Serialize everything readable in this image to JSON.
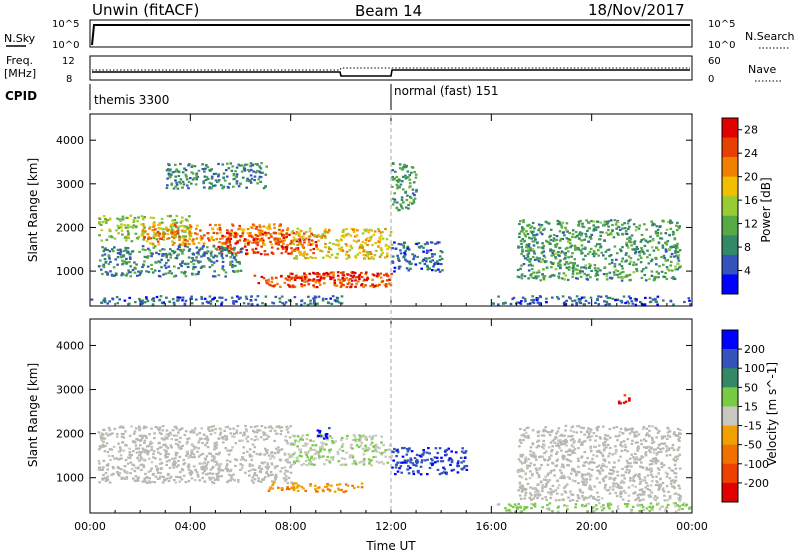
{
  "header": {
    "site": "Unwin (fitACF)",
    "beam": "Beam 14",
    "date": "18/Nov/2017"
  },
  "status_panels": {
    "nsky_label": "N.Sky",
    "nsky_ticks": [
      "10^5",
      "10^0"
    ],
    "nsearch_label": "N.Search",
    "nsearch_ticks": [
      "10^5",
      "10^0"
    ],
    "freq_label_line1": "Freq.",
    "freq_label_line2": "[MHz]",
    "freq_ticks": [
      "12",
      "8"
    ],
    "nave_label": "Nave",
    "nave_ticks": [
      "60",
      "0"
    ],
    "cpid_label": "CPID",
    "cpid_modes": [
      "themis 3300",
      "normal (fast) 151"
    ]
  },
  "colors": {
    "power_scale": [
      "#0000ff",
      "#3355bb",
      "#338866",
      "#55aa44",
      "#99cc33",
      "#f0c000",
      "#f08000",
      "#e84000",
      "#e00000"
    ],
    "velocity_scale": [
      "#0000ff",
      "#3355bb",
      "#338866",
      "#77cc44",
      "#c8c8c0",
      "#f0a000",
      "#f07000",
      "#f04000",
      "#e00000"
    ],
    "ground_scatter": "#b8b8b0"
  },
  "chart_data": [
    {
      "type": "heatmap",
      "panel": "power",
      "ylabel": "Slant Range [km]",
      "yticks": [
        1000,
        2000,
        3000,
        4000
      ],
      "ylim": [
        200,
        4600
      ],
      "xticks": [
        "00:00",
        "04:00",
        "08:00",
        "12:00",
        "16:00",
        "20:00",
        "00:00"
      ],
      "xlim_hours": [
        0,
        24
      ],
      "colorbar": {
        "label": "Power [dB]",
        "ticks": [
          4,
          8,
          12,
          16,
          20,
          24,
          28
        ],
        "range": [
          0,
          30
        ]
      },
      "regions": [
        {
          "t": [
            0.3,
            4
          ],
          "r": [
            1700,
            2300
          ],
          "level": 14
        },
        {
          "t": [
            2,
            8
          ],
          "r": [
            1600,
            2100
          ],
          "level": 22
        },
        {
          "t": [
            5,
            9
          ],
          "r": [
            1400,
            1900
          ],
          "level": 26
        },
        {
          "t": [
            8,
            12
          ],
          "r": [
            1300,
            2000
          ],
          "level": 18
        },
        {
          "t": [
            6.5,
            12
          ],
          "r": [
            650,
            1000
          ],
          "level": 24
        },
        {
          "t": [
            7.5,
            11.5
          ],
          "r": [
            800,
            1000
          ],
          "level": 28
        },
        {
          "t": [
            0.3,
            6
          ],
          "r": [
            900,
            1600
          ],
          "level": 8
        },
        {
          "t": [
            12,
            14
          ],
          "r": [
            1000,
            1700
          ],
          "level": 6
        },
        {
          "t": [
            12,
            13
          ],
          "r": [
            2400,
            3500
          ],
          "level": 10
        },
        {
          "t": [
            3,
            7
          ],
          "r": [
            2900,
            3500
          ],
          "level": 8
        },
        {
          "t": [
            17,
            23.5
          ],
          "r": [
            800,
            2200
          ],
          "level": 10
        },
        {
          "t": [
            16,
            24
          ],
          "r": [
            250,
            450
          ],
          "level": 5
        },
        {
          "t": [
            0,
            10
          ],
          "r": [
            250,
            450
          ],
          "level": 6
        }
      ]
    },
    {
      "type": "heatmap",
      "panel": "velocity",
      "ylabel": "Slant Range [km]",
      "yticks": [
        1000,
        2000,
        3000,
        4000
      ],
      "ylim": [
        200,
        4600
      ],
      "xticks": [
        "00:00",
        "04:00",
        "08:00",
        "12:00",
        "16:00",
        "20:00",
        "00:00"
      ],
      "xlabel": "Time UT",
      "xlim_hours": [
        0,
        24
      ],
      "colorbar": {
        "label": "Velocity [m s^-1]",
        "ticks": [
          200,
          100,
          50,
          15,
          -15,
          -50,
          -100,
          -200
        ],
        "range": [
          -250,
          250
        ]
      },
      "regions": [
        {
          "t": [
            0.3,
            8
          ],
          "r": [
            900,
            2200
          ],
          "level": 0
        },
        {
          "t": [
            8,
            12
          ],
          "r": [
            1300,
            2000
          ],
          "level": 20
        },
        {
          "t": [
            7,
            11
          ],
          "r": [
            700,
            900
          ],
          "level": -80
        },
        {
          "t": [
            12,
            15
          ],
          "r": [
            1100,
            1700
          ],
          "level": 180
        },
        {
          "t": [
            17,
            23.5
          ],
          "r": [
            500,
            2200
          ],
          "level": 0
        },
        {
          "t": [
            16,
            24
          ],
          "r": [
            250,
            450
          ],
          "level": 40
        },
        {
          "t": [
            9,
            9.5
          ],
          "r": [
            1900,
            2200
          ],
          "level": 220
        },
        {
          "t": [
            21,
            21.5
          ],
          "r": [
            2700,
            2900
          ],
          "level": -220
        }
      ]
    }
  ]
}
